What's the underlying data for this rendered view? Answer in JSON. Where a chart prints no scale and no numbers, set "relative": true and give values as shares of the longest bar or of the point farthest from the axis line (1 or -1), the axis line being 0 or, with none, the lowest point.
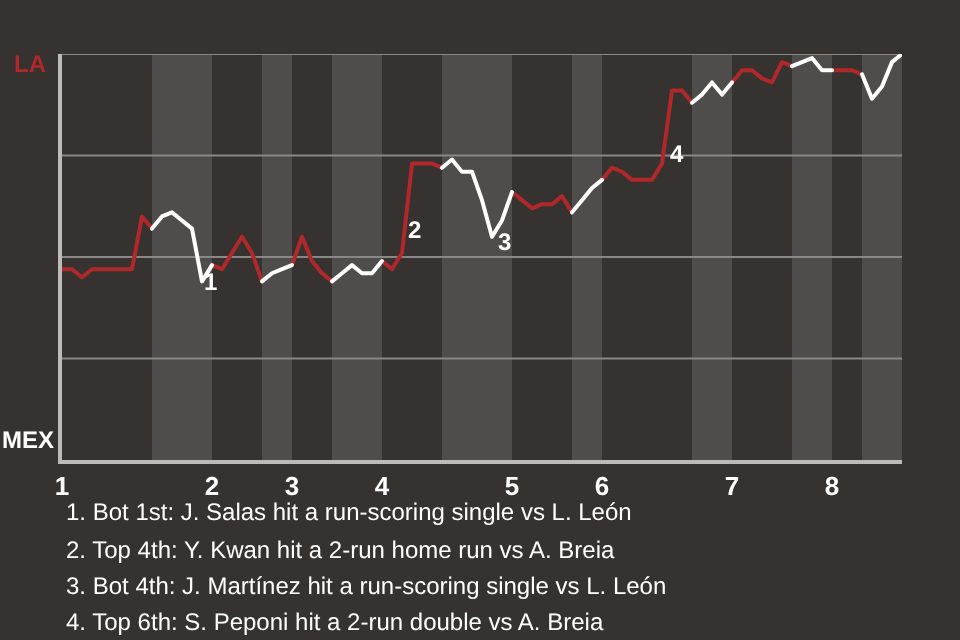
{
  "chart_data": {
    "type": "line",
    "relative": true,
    "categories": [
      "1",
      null,
      null,
      null,
      null,
      null,
      null,
      null,
      null,
      null,
      null,
      null,
      null,
      null,
      null,
      "2",
      null,
      null,
      null,
      null,
      null,
      null,
      null,
      "3",
      null,
      null,
      null,
      null,
      null,
      null,
      null,
      null,
      "4",
      null,
      null,
      null,
      null,
      null,
      null,
      null,
      null,
      null,
      null,
      null,
      null,
      "5",
      null,
      null,
      null,
      null,
      null,
      null,
      null,
      null,
      "6",
      null,
      null,
      null,
      null,
      null,
      null,
      null,
      null,
      null,
      null,
      null,
      null,
      "7",
      null,
      null,
      null,
      null,
      null,
      null,
      null,
      null,
      null,
      "8",
      null,
      null,
      null,
      null,
      null,
      null,
      null
    ],
    "series": [
      {
        "color": "#b0282a",
        "values": [
          0.47,
          0.47,
          0.45,
          0.47,
          0.47,
          0.47,
          0.47,
          0.47,
          0.6,
          0.57,
          null,
          null,
          null,
          null,
          null,
          0.48,
          0.47,
          0.51,
          0.55,
          0.51,
          0.44,
          null,
          null,
          0.48,
          0.55,
          0.49,
          0.46,
          0.44,
          null,
          null,
          null,
          null,
          0.49,
          0.47,
          0.51,
          0.73,
          0.73,
          0.73,
          0.72,
          null,
          null,
          null,
          null,
          null,
          null,
          0.66,
          0.64,
          0.62,
          0.63,
          0.63,
          0.65,
          0.61,
          null,
          null,
          0.69,
          0.72,
          0.71,
          0.69,
          0.69,
          0.69,
          0.73,
          0.91,
          0.91,
          0.88,
          null,
          null,
          null,
          0.93,
          0.96,
          0.96,
          0.94,
          0.93,
          0.98,
          0.97,
          null,
          null,
          null,
          0.96,
          0.96,
          0.96,
          0.95,
          null,
          null,
          null,
          null
        ]
      },
      {
        "color": "#ffffff",
        "values": [
          null,
          null,
          null,
          null,
          null,
          null,
          null,
          null,
          null,
          0.57,
          0.6,
          0.61,
          0.59,
          0.57,
          0.44,
          0.48,
          null,
          null,
          null,
          null,
          0.44,
          0.46,
          0.47,
          0.48,
          null,
          null,
          null,
          0.44,
          0.46,
          0.48,
          0.46,
          0.46,
          0.49,
          null,
          null,
          null,
          null,
          null,
          0.72,
          0.74,
          0.71,
          0.71,
          0.64,
          0.55,
          0.59,
          0.66,
          null,
          null,
          null,
          null,
          null,
          0.61,
          0.64,
          0.67,
          0.69,
          null,
          null,
          null,
          null,
          null,
          null,
          null,
          null,
          0.88,
          0.9,
          0.93,
          0.9,
          0.93,
          null,
          null,
          null,
          null,
          null,
          0.97,
          0.98,
          0.99,
          0.96,
          0.96,
          null,
          null,
          0.95,
          0.89,
          0.92,
          0.98,
          1
        ]
      }
    ],
    "grid": "y",
    "marker": "none",
    "line_style": "solid",
    "annotations": [
      "LA",
      "MEX",
      "1",
      "2",
      "3",
      "4",
      "1. Bot 1st: J. Salas hit a run-scoring single vs L. León",
      "2. Top 4th: Y. Kwan hit a 2-run home run vs A. Breia",
      "3. Bot 4th: J. Martínez hit a run-scoring single vs L. León",
      "4. Top 6th: S. Peponi hit a 2-run double vs A. Breia"
    ]
  }
}
